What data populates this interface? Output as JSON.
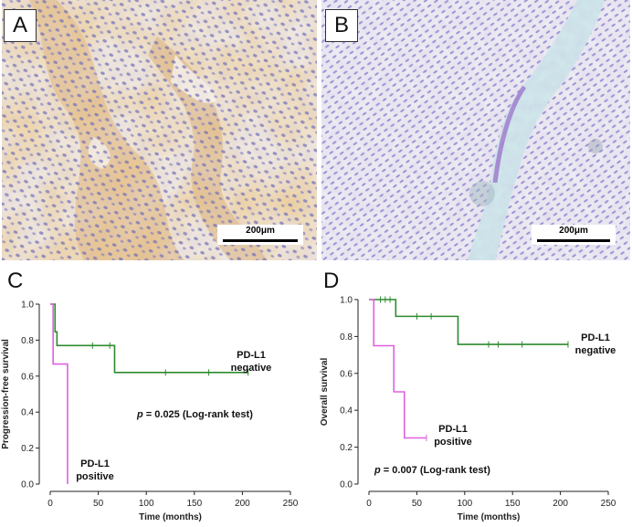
{
  "panels": {
    "A": {
      "letter": "A",
      "scale_bar": "200μm",
      "stain": "brown membranous PD-L1 staining on hematoxylin background"
    },
    "B": {
      "letter": "B",
      "scale_bar": "200μm",
      "stain": "hematoxylin only, no PD-L1 staining"
    }
  },
  "colors": {
    "negative": "#2e8b2e",
    "positive": "#e060e0",
    "axis": "#222222"
  },
  "chart_data": [
    {
      "type": "line",
      "panel": "C",
      "xlabel": "Time (months)",
      "ylabel": "Progression-free survival",
      "xlim": [
        0,
        250
      ],
      "ylim": [
        0,
        1.0
      ],
      "xticks": [
        0,
        50,
        100,
        150,
        200,
        250
      ],
      "yticks": [
        0.0,
        0.2,
        0.4,
        0.6,
        0.8,
        1.0
      ],
      "annotation": {
        "prefix": "p",
        "text": " = 0.025 (Log-rank test)"
      },
      "series": [
        {
          "name": "PD-L1 negative",
          "label_lines": [
            "PD-L1",
            "negative"
          ],
          "color": "#2e8b2e",
          "steps": [
            [
              0,
              1.0
            ],
            [
              5,
              0.846
            ],
            [
              7,
              0.77
            ],
            [
              64,
              0.77
            ],
            [
              67,
              0.62
            ],
            [
              206,
              0.62
            ]
          ],
          "censors": [
            [
              44,
              0.77
            ],
            [
              62,
              0.77
            ],
            [
              120,
              0.62
            ],
            [
              165,
              0.62
            ],
            [
              206,
              0.62
            ]
          ]
        },
        {
          "name": "PD-L1 positive",
          "label_lines": [
            "PD-L1",
            "positive"
          ],
          "color": "#e060e0",
          "steps": [
            [
              0,
              1.0
            ],
            [
              3,
              0.667
            ],
            [
              18,
              0.667
            ],
            [
              18,
              0.0
            ]
          ],
          "censors": []
        }
      ]
    },
    {
      "type": "line",
      "panel": "D",
      "xlabel": "Time (months)",
      "ylabel": "Overall survival",
      "xlim": [
        0,
        250
      ],
      "ylim": [
        0,
        1.0
      ],
      "xticks": [
        0,
        50,
        100,
        150,
        200,
        250
      ],
      "yticks": [
        0.0,
        0.2,
        0.4,
        0.6,
        0.8,
        1.0
      ],
      "annotation": {
        "prefix": "p",
        "text": " = 0.007 (Log-rank test)"
      },
      "series": [
        {
          "name": "PD-L1 negative",
          "label_lines": [
            "PD-L1",
            "negative"
          ],
          "color": "#2e8b2e",
          "steps": [
            [
              0,
              1.0
            ],
            [
              28,
              1.0
            ],
            [
              28,
              0.909
            ],
            [
              90,
              0.909
            ],
            [
              93,
              0.757
            ],
            [
              208,
              0.757
            ]
          ],
          "censors": [
            [
              12,
              1.0
            ],
            [
              17,
              1.0
            ],
            [
              22,
              1.0
            ],
            [
              50,
              0.909
            ],
            [
              65,
              0.909
            ],
            [
              125,
              0.757
            ],
            [
              135,
              0.757
            ],
            [
              160,
              0.757
            ],
            [
              208,
              0.757
            ]
          ]
        },
        {
          "name": "PD-L1 positive",
          "label_lines": [
            "PD-L1",
            "positive"
          ],
          "color": "#e060e0",
          "steps": [
            [
              0,
              1.0
            ],
            [
              5,
              0.75
            ],
            [
              26,
              0.75
            ],
            [
              26,
              0.5
            ],
            [
              37,
              0.5
            ],
            [
              37,
              0.25
            ],
            [
              60,
              0.25
            ]
          ],
          "censors": [
            [
              60,
              0.25
            ]
          ]
        }
      ]
    }
  ]
}
